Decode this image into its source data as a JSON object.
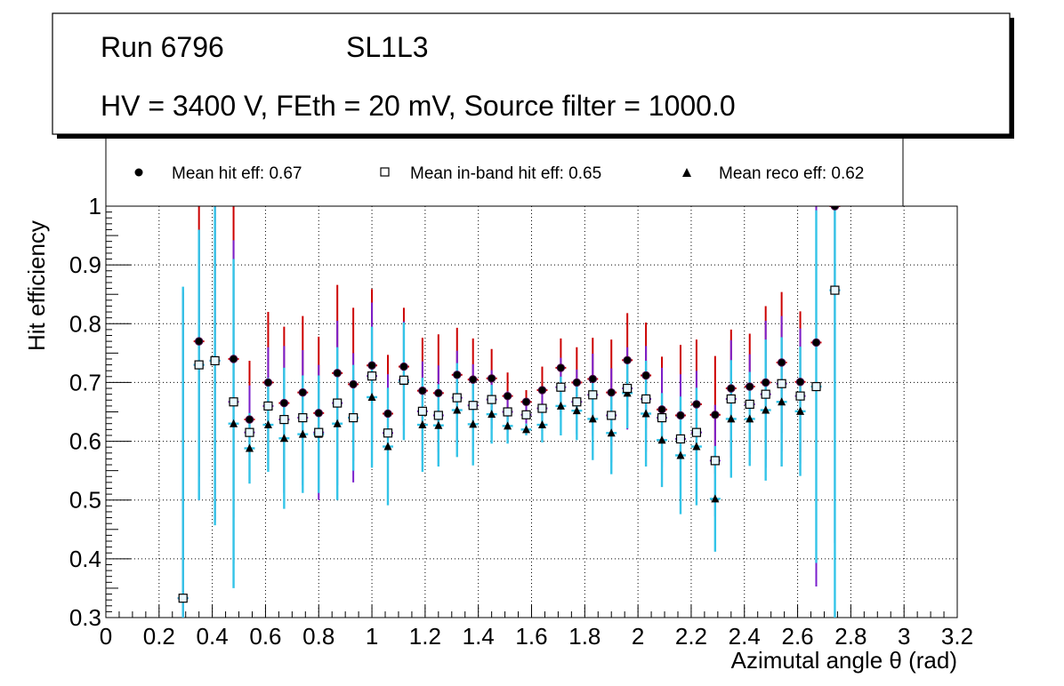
{
  "header": {
    "run": "Run 6796",
    "layer": "SL1L3",
    "settings": "HV = 3400 V, FEth = 20 mV, Source filter = 1000.0"
  },
  "legend": {
    "hit": "Mean hit  eff: 0.67",
    "inband": "Mean in-band hit eff: 0.65",
    "reco": "Mean reco eff: 0.62"
  },
  "colors": {
    "hit_err": "#cc0000",
    "inband_err": "#7a1fcc",
    "reco_err": "#33c4e8",
    "grid": "#000000"
  },
  "chart_data": {
    "type": "scatter",
    "xlabel": "Azimutal angle θ (rad)",
    "ylabel": "Hit efficiency",
    "xlim": [
      0,
      3.2
    ],
    "ylim": [
      0.3,
      1.0
    ],
    "grid": true,
    "x_ticks": [
      "0",
      "0.2",
      "0.4",
      "0.6",
      "0.8",
      "1",
      "1.2",
      "1.4",
      "1.6",
      "1.8",
      "2",
      "2.2",
      "2.4",
      "2.6",
      "2.8",
      "3",
      "3.2"
    ],
    "y_ticks": [
      "0.3",
      "0.4",
      "0.5",
      "0.6",
      "0.7",
      "0.8",
      "0.9",
      "1"
    ],
    "x_half_width": 0.02,
    "x": [
      0.29,
      0.35,
      0.41,
      0.48,
      0.54,
      0.61,
      0.67,
      0.74,
      0.8,
      0.87,
      0.93,
      1.0,
      1.06,
      1.12,
      1.19,
      1.25,
      1.32,
      1.38,
      1.45,
      1.51,
      1.58,
      1.64,
      1.71,
      1.77,
      1.83,
      1.9,
      1.96,
      2.03,
      2.09,
      2.16,
      2.22,
      2.29,
      2.35,
      2.42,
      2.48,
      2.54,
      2.61,
      2.67,
      2.74
    ],
    "series": [
      {
        "name": "Mean hit  eff: 0.67",
        "values": [
          0.333,
          0.77,
          0.737,
          0.74,
          0.637,
          0.7,
          0.665,
          0.683,
          0.648,
          0.716,
          0.697,
          0.729,
          0.647,
          0.727,
          0.686,
          0.682,
          0.713,
          0.705,
          0.707,
          0.677,
          0.667,
          0.687,
          0.725,
          0.7,
          0.706,
          0.683,
          0.738,
          0.712,
          0.654,
          0.644,
          0.663,
          0.645,
          0.69,
          0.693,
          0.7,
          0.734,
          0.701,
          0.768,
          1.0
        ],
        "errors": [
          0.52,
          0.23,
          0.27,
          0.27,
          0.1,
          0.12,
          0.13,
          0.13,
          0.13,
          0.15,
          0.13,
          0.13,
          0.1,
          0.1,
          0.09,
          0.1,
          0.08,
          0.07,
          0.05,
          0.04,
          0.02,
          0.04,
          0.05,
          0.06,
          0.07,
          0.09,
          0.08,
          0.09,
          0.09,
          0.12,
          0.11,
          0.1,
          0.1,
          0.09,
          0.13,
          0.12,
          0.12,
          0.38,
          0.3
        ]
      },
      {
        "name": "Mean in-band hit eff: 0.65",
        "values": [
          0.333,
          0.73,
          0.737,
          0.667,
          0.615,
          0.66,
          0.637,
          0.64,
          0.615,
          0.665,
          0.64,
          0.711,
          0.614,
          0.704,
          0.651,
          0.644,
          0.674,
          0.661,
          0.671,
          0.65,
          0.645,
          0.656,
          0.692,
          0.667,
          0.679,
          0.644,
          0.69,
          0.672,
          0.64,
          0.604,
          0.615,
          0.567,
          0.672,
          0.663,
          0.68,
          0.698,
          0.677,
          0.693,
          0.857
        ]
      },
      {
        "name": "Mean reco eff: 0.62",
        "values": [
          0.333,
          0.73,
          0.737,
          0.63,
          0.588,
          0.628,
          0.605,
          0.612,
          0.612,
          0.63,
          0.64,
          0.675,
          0.591,
          0.702,
          0.628,
          0.627,
          0.653,
          0.629,
          0.646,
          0.626,
          0.62,
          0.628,
          0.66,
          0.652,
          0.638,
          0.614,
          0.682,
          0.647,
          0.602,
          0.576,
          0.591,
          0.502,
          0.638,
          0.638,
          0.653,
          0.667,
          0.651,
          0.693,
          0.857
        ],
        "errors": [
          0.53,
          0.23,
          0.28,
          0.28,
          0.06,
          0.08,
          0.12,
          0.1,
          0.1,
          0.13,
          0.09,
          0.12,
          0.1,
          0.1,
          0.08,
          0.07,
          0.08,
          0.07,
          0.05,
          0.03,
          0.01,
          0.03,
          0.05,
          0.05,
          0.07,
          0.07,
          0.06,
          0.09,
          0.08,
          0.1,
          0.1,
          0.09,
          0.1,
          0.08,
          0.12,
          0.11,
          0.11,
          0.3,
          0.56
        ]
      }
    ]
  }
}
